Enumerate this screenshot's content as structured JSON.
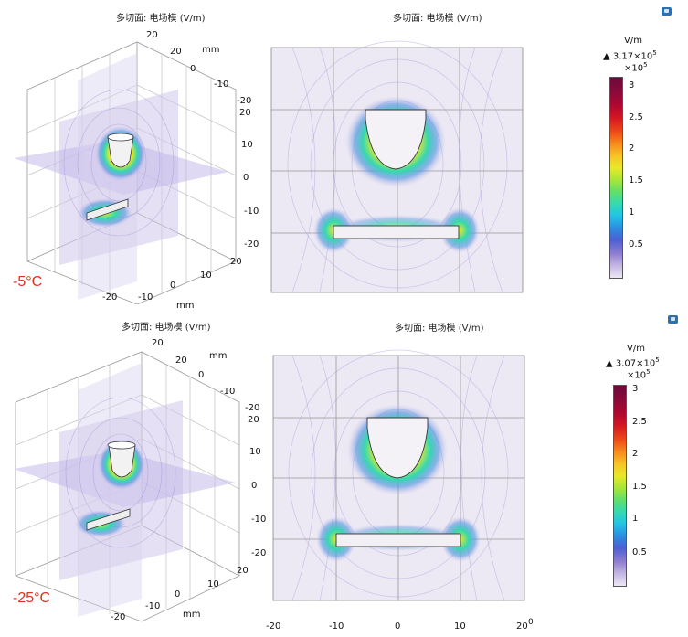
{
  "panels": [
    {
      "id": "top",
      "temperature": "-5°C",
      "title_3d": "多切面: 电场模 (V/m)",
      "title_2d": "多切面: 电场模 (V/m)",
      "axis_unit": "mm",
      "x3d_ticks": [
        "20",
        "0",
        "-10",
        "-20"
      ],
      "z3d_ticks": [
        "20",
        "10",
        "0",
        "-10",
        "-20"
      ],
      "y3d_ticks": [
        "20",
        "10",
        "0",
        "-10",
        "-20"
      ],
      "colorbar": {
        "unit": "V/m",
        "max_label": "▲ 3.17×10",
        "max_exp": "5",
        "mult": "×10",
        "mult_exp": "5",
        "ticks": [
          "3",
          "2.5",
          "2",
          "1.5",
          "1",
          "0.5"
        ]
      }
    },
    {
      "id": "bottom",
      "temperature": "-25°C",
      "title_3d": "多切面: 电场模 (V/m)",
      "title_2d": "多切面: 电场模 (V/m)",
      "axis_unit": "mm",
      "x3d_ticks": [
        "20",
        "0",
        "-10",
        "-20"
      ],
      "z3d_ticks": [
        "20",
        "10",
        "0",
        "-10",
        "-20"
      ],
      "y3d_ticks": [
        "20",
        "10",
        "0",
        "-10",
        "-20"
      ],
      "x2d_ticks": [
        "-20",
        "-10",
        "0",
        "10",
        "20"
      ],
      "x2d_trailing": "0",
      "colorbar": {
        "unit": "V/m",
        "max_label": "▲ 3.07×10",
        "max_exp": "5",
        "mult": "×10",
        "mult_exp": "5",
        "ticks": [
          "3",
          "2.5",
          "2",
          "1.5",
          "1",
          "0.5"
        ]
      }
    }
  ],
  "chart_data": [
    {
      "type": "heatmap",
      "title": "多切面: 电场模 (V/m)",
      "view": "3D multislice",
      "case": "-5°C",
      "axis_unit": "mm",
      "axis_range_mm": [
        -20,
        20
      ],
      "color_quantity": "electric field norm (V/m)",
      "color_max": 317000,
      "colorbar_ticks_x1e5": [
        0.5,
        1,
        1.5,
        2,
        2.5,
        3
      ]
    },
    {
      "type": "heatmap",
      "title": "多切面: 电场模 (V/m)",
      "view": "2D cross-section",
      "case": "-5°C",
      "axis_range_mm": [
        -20,
        20
      ],
      "color_max": 317000,
      "colorbar_ticks_x1e5": [
        0.5,
        1,
        1.5,
        2,
        2.5,
        3
      ]
    },
    {
      "type": "heatmap",
      "title": "多切面: 电场模 (V/m)",
      "view": "3D multislice",
      "case": "-25°C",
      "axis_unit": "mm",
      "axis_range_mm": [
        -20,
        20
      ],
      "color_max": 307000,
      "colorbar_ticks_x1e5": [
        0.5,
        1,
        1.5,
        2,
        2.5,
        3
      ]
    },
    {
      "type": "heatmap",
      "title": "多切面: 电场模 (V/m)",
      "view": "2D cross-section",
      "case": "-25°C",
      "x_ticks": [
        -20,
        -10,
        0,
        10,
        20
      ],
      "axis_range_mm": [
        -20,
        20
      ],
      "color_max": 307000,
      "colorbar_ticks_x1e5": [
        0.5,
        1,
        1.5,
        2,
        2.5,
        3
      ]
    }
  ]
}
